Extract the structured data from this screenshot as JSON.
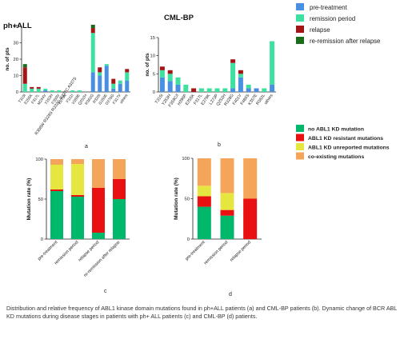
{
  "figure": {
    "caption": "Distribution and relative frequency of ABL1 kinase domain mutations found in ph+ALL patients (a) and CML-BP patients (b). Dynamic change of BCR ABL KD mutations during disease stages in patients with ph+ ALL patients (c) and CML-BP (d) patients.",
    "panel_labels": [
      "a",
      "b",
      "c",
      "d"
    ]
  },
  "colors": {
    "pre_treatment": "#4a90e2",
    "remission_period": "#3ee0a0",
    "relapse": "#a31515",
    "re_remission": "#1a6b1a",
    "no_mutation": "#00b86b",
    "resistant": "#e81010",
    "unreported": "#e6e640",
    "coexisting": "#f5a55a"
  },
  "legend_top": [
    {
      "label": "pre-treatment",
      "color_key": "pre_treatment"
    },
    {
      "label": "remission period",
      "color_key": "remission_period"
    },
    {
      "label": "relapse",
      "color_key": "relapse"
    },
    {
      "label": "re-remission after relapse",
      "color_key": "re_remission"
    }
  ],
  "legend_bottom": [
    {
      "label": "no ABL1 KD mutation",
      "color_key": "no_mutation"
    },
    {
      "label": "ABL1 KD resistant mutations",
      "color_key": "resistant"
    },
    {
      "label": "ABL1 KD unreported mutations",
      "color_key": "unreported"
    },
    {
      "label": "co-existing mutations",
      "color_key": "coexisting"
    }
  ],
  "chart_data": [
    {
      "id": "a",
      "type": "bar",
      "stacked": true,
      "title": "ph+ALL",
      "ylabel": "no. of pts",
      "ylim": [
        0,
        40
      ],
      "yticks": [
        0,
        10,
        20,
        30,
        40
      ],
      "extra_label": "R308W R328S R332G R337C A337S",
      "categories": [
        "T315I",
        "E255K",
        "F317L",
        "M244V",
        "Y253H",
        "F359V",
        "E279K",
        "F311I",
        "V289E",
        "Q252H",
        "R362G",
        "R328I",
        "G250E",
        "D276G",
        "F317V",
        "others"
      ],
      "series": [
        {
          "name": "pre-treatment",
          "color_key": "pre_treatment",
          "values": [
            0,
            0,
            0,
            1,
            0,
            0,
            0,
            0,
            0,
            0,
            12,
            10,
            16,
            2,
            5,
            7
          ]
        },
        {
          "name": "remission period",
          "color_key": "remission_period",
          "values": [
            5,
            2,
            2,
            1,
            1,
            1,
            0,
            1,
            1,
            0,
            24,
            2,
            1,
            3,
            2,
            5
          ]
        },
        {
          "name": "relapse",
          "color_key": "relapse",
          "values": [
            10,
            1,
            1,
            0,
            0,
            0,
            0,
            0,
            0,
            0,
            3,
            3,
            0,
            3,
            0,
            2
          ]
        },
        {
          "name": "re-remission after relapse",
          "color_key": "re_remission",
          "values": [
            2,
            0,
            0,
            0,
            0,
            0,
            0,
            0,
            0,
            0,
            2,
            0,
            0,
            0,
            0,
            0
          ]
        }
      ]
    },
    {
      "id": "b",
      "type": "bar",
      "stacked": true,
      "title": "CML-BP",
      "ylabel": "no. of pts",
      "ylim": [
        0,
        15
      ],
      "yticks": [
        0,
        5,
        10,
        15
      ],
      "categories": [
        "T315I",
        "Y253H",
        "F359C/I",
        "H396P",
        "E255K",
        "F317L",
        "E279K",
        "L273P",
        "Q252H",
        "R328G",
        "F401V",
        "F486S",
        "K357E",
        "R362L",
        "others"
      ],
      "series": [
        {
          "name": "pre-treatment",
          "color_key": "pre_treatment",
          "values": [
            4,
            3,
            2,
            0,
            0,
            0,
            0,
            0,
            0,
            1,
            4,
            1,
            1,
            0,
            2
          ]
        },
        {
          "name": "remission period",
          "color_key": "remission_period",
          "values": [
            2,
            2,
            2,
            2,
            0,
            1,
            1,
            1,
            1,
            7,
            1,
            1,
            0,
            1,
            12
          ]
        },
        {
          "name": "relapse",
          "color_key": "relapse",
          "values": [
            1,
            1,
            0,
            0,
            1,
            0,
            0,
            0,
            0,
            1,
            1,
            0,
            0,
            0,
            0
          ]
        },
        {
          "name": "re-remission after relapse",
          "color_key": "re_remission",
          "values": [
            0,
            0,
            0,
            0,
            0,
            0,
            0,
            0,
            0,
            0,
            0,
            0,
            0,
            0,
            0
          ]
        }
      ]
    },
    {
      "id": "c",
      "type": "bar",
      "stacked": true,
      "ylabel": "Mutation rate (%)",
      "ylim": [
        0,
        100
      ],
      "yticks": [
        0,
        50,
        100
      ],
      "categories": [
        "pre-treatment",
        "remission period",
        "relapse period",
        "re-remission after relapse"
      ],
      "series": [
        {
          "name": "no ABL1 KD mutation",
          "color_key": "no_mutation",
          "values": [
            60,
            53,
            8,
            50
          ]
        },
        {
          "name": "ABL1 KD resistant mutations",
          "color_key": "resistant",
          "values": [
            2,
            2,
            56,
            25
          ]
        },
        {
          "name": "ABL1 KD unreported mutations",
          "color_key": "unreported",
          "values": [
            31,
            39,
            0,
            0
          ]
        },
        {
          "name": "co-existing mutations",
          "color_key": "coexisting",
          "values": [
            7,
            6,
            36,
            25
          ]
        }
      ]
    },
    {
      "id": "d",
      "type": "bar",
      "stacked": true,
      "ylabel": "Mutation rate (%)",
      "ylim": [
        0,
        100
      ],
      "yticks": [
        0,
        50,
        100
      ],
      "categories": [
        "pre-treatment",
        "remission period",
        "relapse period"
      ],
      "series": [
        {
          "name": "no ABL1 KD mutation",
          "color_key": "no_mutation",
          "values": [
            40,
            29,
            0
          ]
        },
        {
          "name": "ABL1 KD resistant mutations",
          "color_key": "resistant",
          "values": [
            13,
            7,
            50
          ]
        },
        {
          "name": "ABL1 KD unreported mutations",
          "color_key": "unreported",
          "values": [
            13,
            21,
            0
          ]
        },
        {
          "name": "co-existing mutations",
          "color_key": "coexisting",
          "values": [
            34,
            43,
            50
          ]
        }
      ]
    }
  ]
}
